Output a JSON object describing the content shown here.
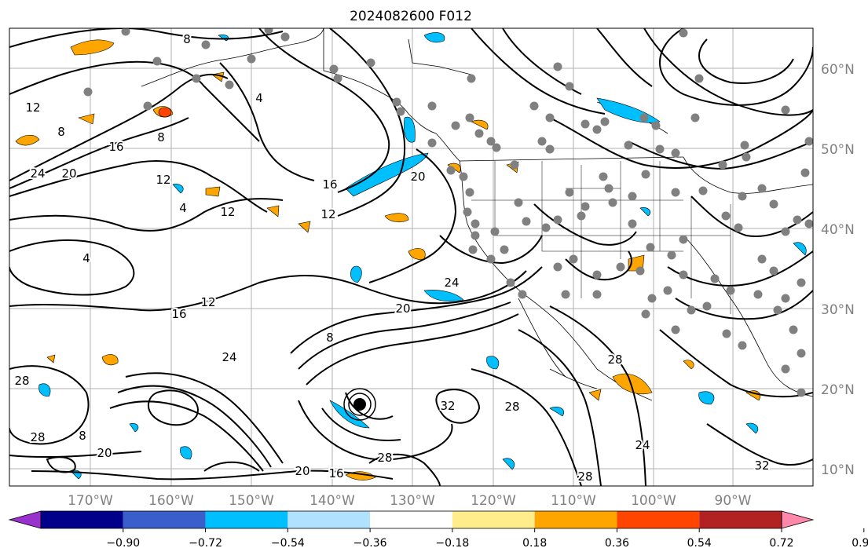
{
  "title": "2024082600 F012",
  "map": {
    "lon_range": [
      -179,
      -80
    ],
    "lat_range": [
      8,
      66
    ],
    "lon_labels": [
      "170°W",
      "160°W",
      "150°W",
      "140°W",
      "130°W",
      "120°W",
      "110°W",
      "100°W",
      "90°W"
    ],
    "lat_labels": [
      "60°N",
      "50°N",
      "40°N",
      "30°N",
      "20°N",
      "10°N"
    ],
    "contour_color": "#000000",
    "grid_color": "#b0b0b0",
    "marker_color": "#808080",
    "contour_labels": [
      "12",
      "8",
      "24",
      "20",
      "16",
      "12",
      "4",
      "8",
      "4",
      "12",
      "16",
      "20",
      "24",
      "16",
      "12",
      "20",
      "8",
      "4",
      "8",
      "12",
      "8",
      "24",
      "28",
      "32",
      "28",
      "20",
      "28",
      "20",
      "16",
      "28",
      "24",
      "28",
      "28",
      "32"
    ]
  },
  "colorbar": {
    "ticks": [
      "−0.90",
      "−0.72",
      "−0.54",
      "−0.36",
      "−0.18",
      "0.18",
      "0.36",
      "0.54",
      "0.72",
      "0.90"
    ],
    "colors": [
      "#9932cc",
      "#00008b",
      "#3a5fcd",
      "#00bfff",
      "#b0e2ff",
      "#ffffff",
      "#ffec8b",
      "#ffa500",
      "#ff4500",
      "#b22222",
      "#ff88aa"
    ]
  }
}
